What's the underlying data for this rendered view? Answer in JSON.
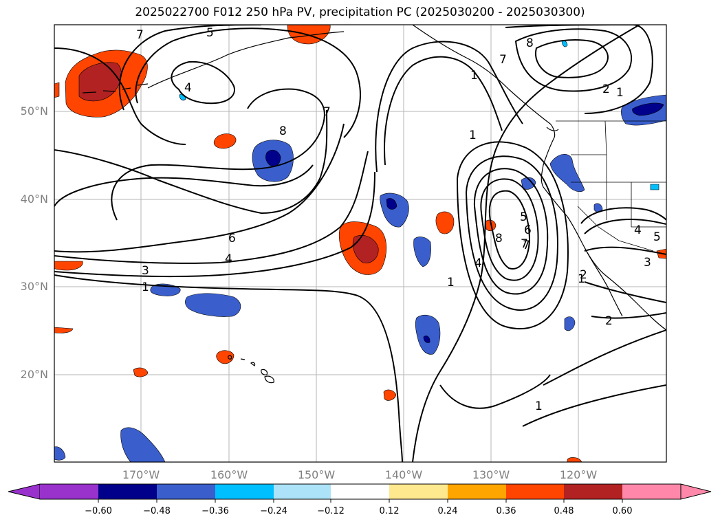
{
  "title": "2025022700 F012 250 hPa PV, precipitation PC (2025030200 - 2025030300)",
  "latitude_labels": [
    "50°N",
    "40°N",
    "30°N",
    "20°N"
  ],
  "longitude_labels": [
    "170°W",
    "160°W",
    "150°W",
    "140°W",
    "130°W",
    "120°W"
  ],
  "contour_labels": [
    "7",
    "5",
    "4",
    "8",
    "7",
    "6",
    "4",
    "3",
    "1",
    "1",
    "8",
    "7",
    "2",
    "1",
    "1",
    "2",
    "1",
    "7",
    "4",
    "6",
    "8",
    "7",
    "5",
    "4",
    "3",
    "5",
    "1",
    "2",
    "1"
  ],
  "colorbar": {
    "ticks": [
      "−0.60",
      "−0.48",
      "−0.36",
      "−0.24",
      "−0.12",
      "0.12",
      "0.24",
      "0.36",
      "0.48",
      "0.60"
    ],
    "colors": [
      "#9932CC",
      "#00008B",
      "#3A5FCD",
      "#00BFFF",
      "#ADE3F8",
      "#FFFFFF",
      "#FFE98F",
      "#FFA500",
      "#FF4500",
      "#B22222",
      "#FF88AA"
    ]
  }
}
